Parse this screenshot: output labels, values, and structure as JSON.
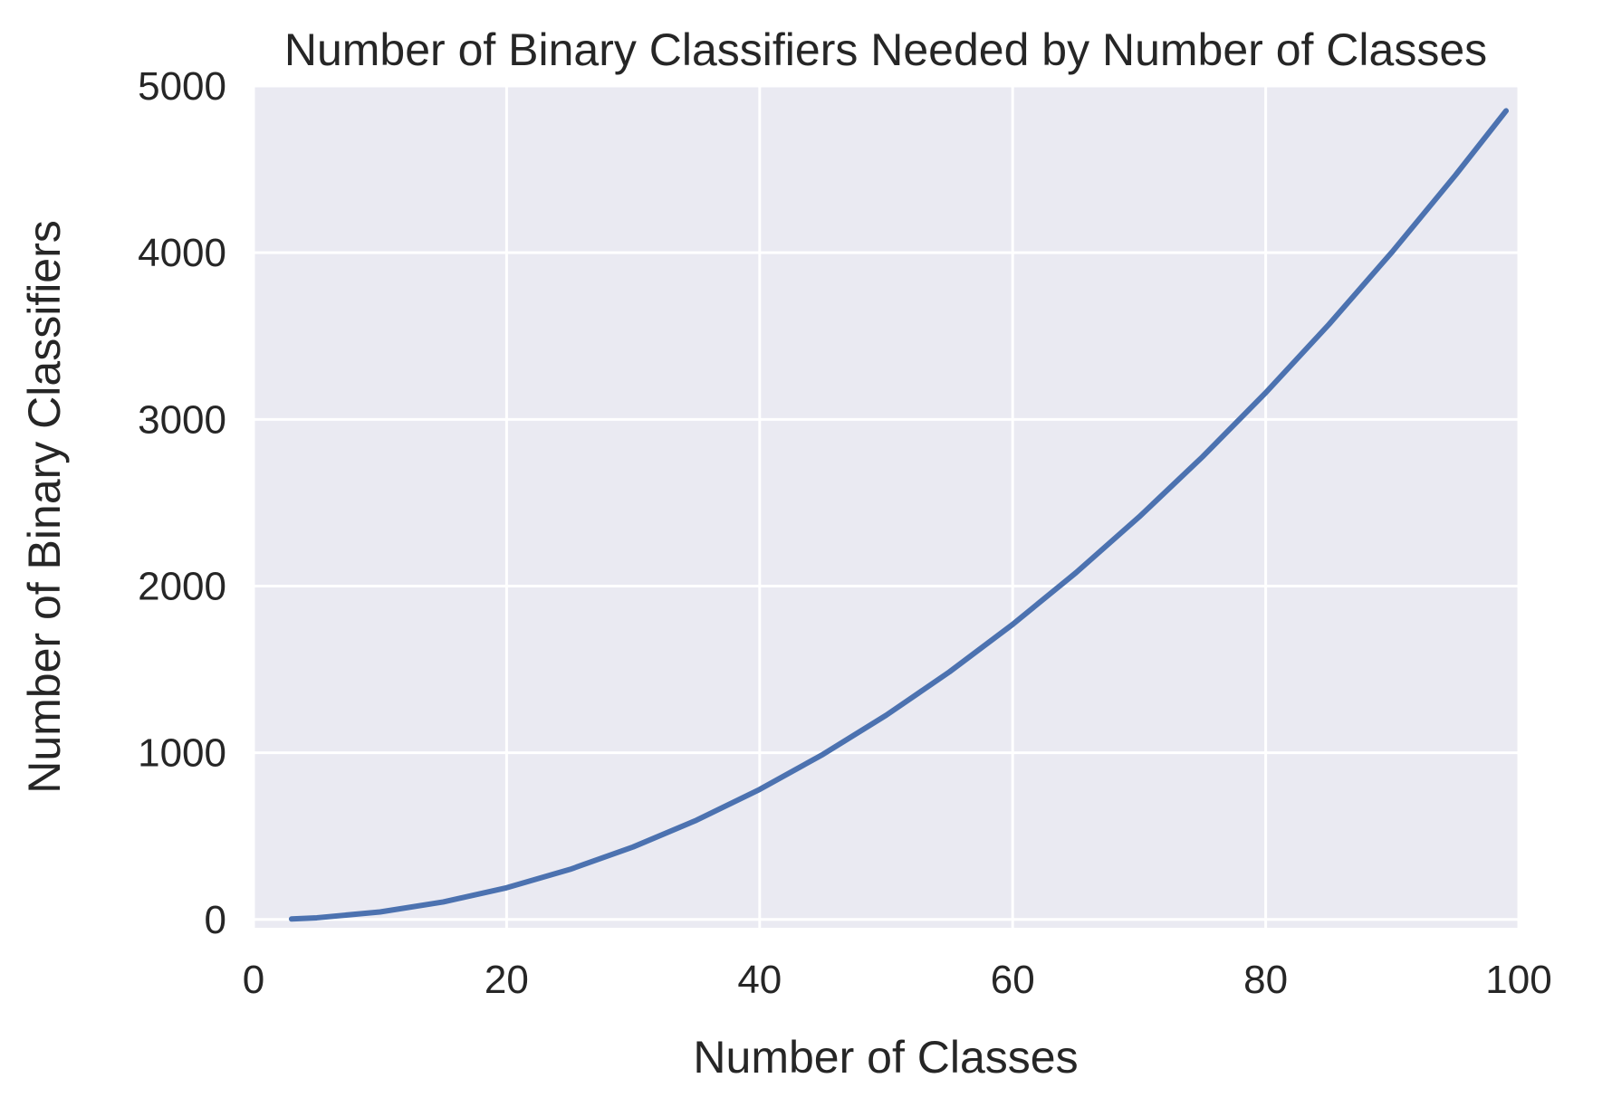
{
  "chart_data": {
    "type": "line",
    "title": "Number of Binary Classifiers Needed by Number of Classes",
    "xlabel": "Number of Classes",
    "ylabel": "Number of Binary Classifiers",
    "xlim": [
      0,
      100
    ],
    "ylim": [
      -50,
      5000
    ],
    "xticks": [
      0,
      20,
      40,
      60,
      80,
      100
    ],
    "yticks": [
      0,
      1000,
      2000,
      3000,
      4000,
      5000
    ],
    "xtick_labels": [
      "0",
      "20",
      "40",
      "60",
      "80",
      "100"
    ],
    "ytick_labels": [
      "0",
      "1000",
      "2000",
      "3000",
      "4000",
      "5000"
    ],
    "grid": true,
    "series": [
      {
        "color": "#4c72b0",
        "x": [
          3,
          5,
          10,
          15,
          20,
          25,
          30,
          35,
          40,
          45,
          50,
          55,
          60,
          65,
          70,
          75,
          80,
          85,
          90,
          95,
          99
        ],
        "values": [
          3,
          10,
          45,
          105,
          190,
          300,
          435,
          595,
          780,
          990,
          1225,
          1485,
          1770,
          2080,
          2415,
          2775,
          3160,
          3570,
          4005,
          4465,
          4851
        ]
      }
    ],
    "background_color": "#eaeaf2",
    "grid_color": "#ffffff"
  }
}
